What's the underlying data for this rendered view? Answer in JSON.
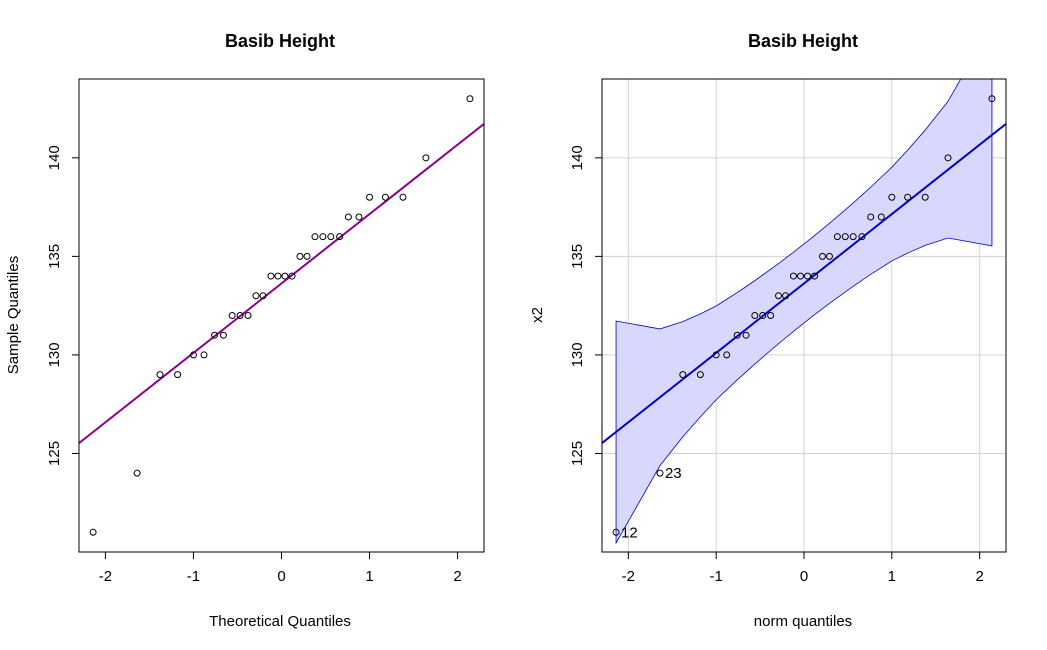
{
  "chart_data": [
    {
      "type": "scatter",
      "title": "Basib Height",
      "xlabel": "Theoretical Quantiles",
      "ylabel": "Sample Quantiles",
      "xlim": [
        -2.3,
        2.3
      ],
      "ylim": [
        120,
        144
      ],
      "xticks": [
        -2,
        -1,
        0,
        1,
        2
      ],
      "yticks": [
        125,
        130,
        135,
        140
      ],
      "grid": false,
      "line": {
        "color": "#8B008B"
      },
      "x": [
        -2.14,
        -1.64,
        -1.38,
        -1.18,
        -1.0,
        -0.88,
        -0.76,
        -0.66,
        -0.56,
        -0.47,
        -0.38,
        -0.29,
        -0.21,
        -0.12,
        -0.04,
        0.04,
        0.12,
        0.21,
        0.29,
        0.38,
        0.47,
        0.56,
        0.66,
        0.76,
        0.88,
        1.0,
        1.18,
        1.38,
        1.64,
        2.14
      ],
      "y": [
        121,
        124,
        129,
        129,
        130,
        130,
        131,
        131,
        132,
        132,
        132,
        133,
        133,
        134,
        134,
        134,
        134,
        135,
        135,
        136,
        136,
        136,
        136,
        137,
        137,
        138,
        138,
        138,
        140,
        143
      ]
    },
    {
      "type": "scatter",
      "title": "Basib Height",
      "xlabel": "norm quantiles",
      "ylabel": "x2",
      "xlim": [
        -2.3,
        2.3
      ],
      "ylim": [
        120,
        144
      ],
      "xticks": [
        -2,
        -1,
        0,
        1,
        2
      ],
      "yticks": [
        125,
        130,
        135,
        140
      ],
      "grid": true,
      "line": {
        "color": "#0000CD"
      },
      "band": {
        "color": "#D8D8FF"
      },
      "x": [
        -2.14,
        -1.64,
        -1.38,
        -1.18,
        -1.0,
        -0.88,
        -0.76,
        -0.66,
        -0.56,
        -0.47,
        -0.38,
        -0.29,
        -0.21,
        -0.12,
        -0.04,
        0.04,
        0.12,
        0.21,
        0.29,
        0.38,
        0.47,
        0.56,
        0.66,
        0.76,
        0.88,
        1.0,
        1.18,
        1.38,
        1.64,
        2.14
      ],
      "y": [
        121,
        124,
        129,
        129,
        130,
        130,
        131,
        131,
        132,
        132,
        132,
        133,
        133,
        134,
        134,
        134,
        134,
        135,
        135,
        136,
        136,
        136,
        136,
        137,
        137,
        138,
        138,
        138,
        140,
        143
      ],
      "labeled_points": [
        {
          "label": "12",
          "x": -2.14,
          "y": 121
        },
        {
          "label": "23",
          "x": -1.64,
          "y": 124
        }
      ]
    }
  ]
}
